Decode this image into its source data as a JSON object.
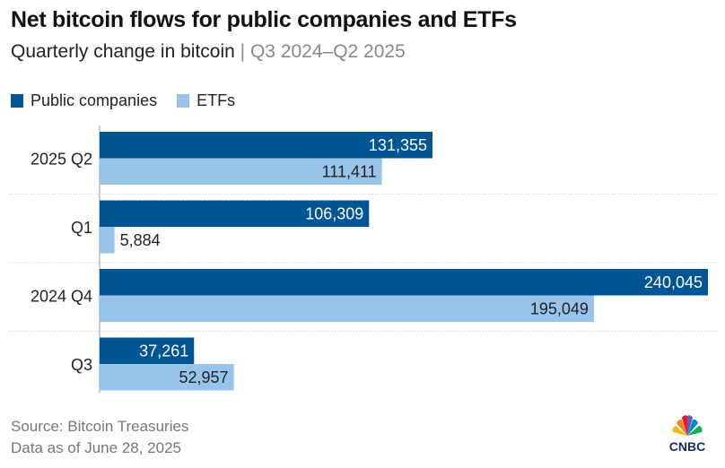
{
  "title": "Net bitcoin flows for public companies and ETFs",
  "subtitle": {
    "main": "Quarterly change in bitcoin",
    "separator": "|",
    "range": "Q3 2024–Q2 2025"
  },
  "source": "Source: Bitcoin Treasuries",
  "data_as_of": "Data as of June 28, 2025",
  "logo": "CNBC",
  "colors": {
    "public_companies": "#005594",
    "etfs": "#97c4e8"
  },
  "chart_data": {
    "type": "bar",
    "orientation": "horizontal",
    "title": "Net bitcoin flows for public companies and ETFs",
    "subtitle": "Quarterly change in bitcoin | Q3 2024–Q2 2025",
    "categories": [
      "2025 Q2",
      "Q1",
      "2024 Q4",
      "Q3"
    ],
    "series": [
      {
        "name": "Public companies",
        "color": "#005594",
        "values": [
          131355,
          106309,
          240045,
          37261
        ],
        "labels": [
          "131,355",
          "106,309",
          "240,045",
          "37,261"
        ]
      },
      {
        "name": "ETFs",
        "color": "#97c4e8",
        "values": [
          111411,
          5884,
          195049,
          52957
        ],
        "labels": [
          "111,411",
          "5,884",
          "195,049",
          "52,957"
        ]
      }
    ],
    "xlim": [
      0,
      240045
    ],
    "legend": "top-left",
    "grid": false
  }
}
